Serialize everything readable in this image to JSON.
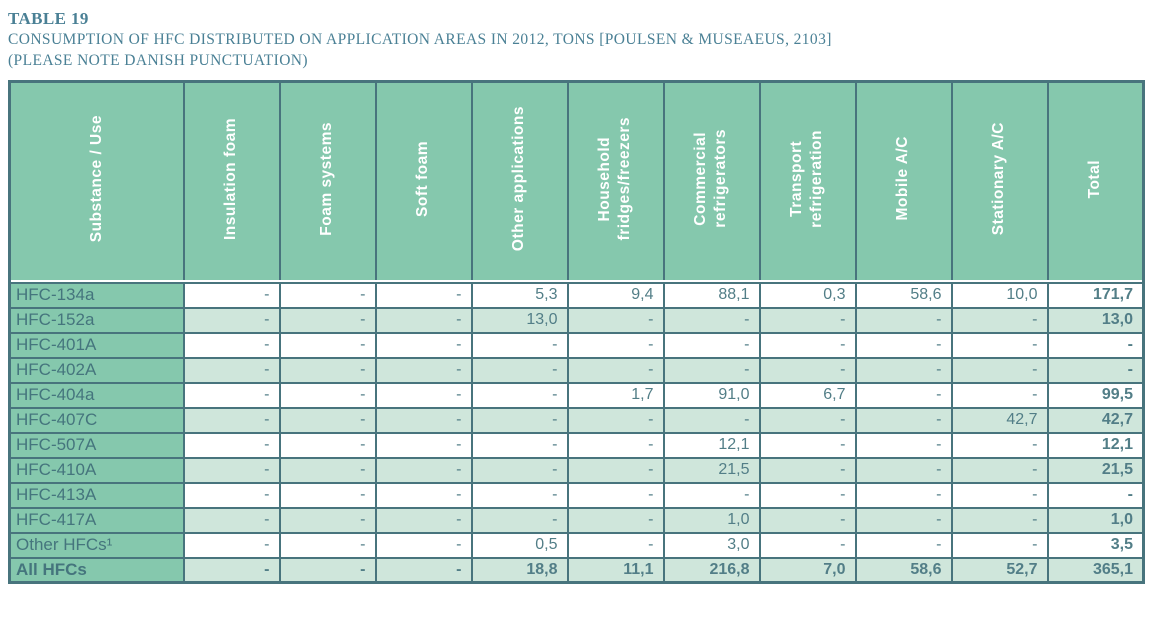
{
  "page": {
    "title": "TABLE 19",
    "subtitle": "CONSUMPTION OF HFC DISTRIBUTED ON APPLICATION AREAS IN 2012, TONS [POULSEN & MUSEAEUS, 2103]",
    "note": "(PLEASE NOTE DANISH PUNCTUATION)"
  },
  "colors": {
    "header_bg": "#85c8ad",
    "alt_row_bg": "#cfe6db",
    "border": "#48747d",
    "title_text": "#4a8095",
    "data_text": "#527e87",
    "label_text": "#45757d",
    "header_text": "#ffffff"
  },
  "table": {
    "corner_label": "Substance / Use",
    "columns": [
      "Insulation foam",
      "Foam systems",
      "Soft foam",
      "Other applications",
      "Household\nfridges/freezers",
      "Commercial\nrefrigerators",
      "Transport\nrefrigeration",
      "Mobile A/C",
      "Stationary A/C",
      "Total"
    ],
    "rows": [
      {
        "label": "HFC-134a",
        "bold": false,
        "values": [
          "-",
          "-",
          "-",
          "5,3",
          "9,4",
          "88,1",
          "0,3",
          "58,6",
          "10,0",
          "171,7"
        ]
      },
      {
        "label": "HFC-152a",
        "bold": false,
        "values": [
          "-",
          "-",
          "-",
          "13,0",
          "-",
          "-",
          "-",
          "-",
          "-",
          "13,0"
        ]
      },
      {
        "label": "HFC-401A",
        "bold": false,
        "values": [
          "-",
          "-",
          "-",
          "-",
          "-",
          "-",
          "-",
          "-",
          "-",
          "-"
        ]
      },
      {
        "label": "HFC-402A",
        "bold": false,
        "values": [
          "-",
          "-",
          "-",
          "-",
          "-",
          "-",
          "-",
          "-",
          "-",
          "-"
        ]
      },
      {
        "label": "HFC-404a",
        "bold": false,
        "values": [
          "-",
          "-",
          "-",
          "-",
          "1,7",
          "91,0",
          "6,7",
          "-",
          "-",
          "99,5"
        ]
      },
      {
        "label": "HFC-407C",
        "bold": false,
        "values": [
          "-",
          "-",
          "-",
          "-",
          "-",
          "-",
          "-",
          "-",
          "42,7",
          "42,7"
        ]
      },
      {
        "label": "HFC-507A",
        "bold": false,
        "values": [
          "-",
          "-",
          "-",
          "-",
          "-",
          "12,1",
          "-",
          "-",
          "-",
          "12,1"
        ]
      },
      {
        "label": "HFC-410A",
        "bold": false,
        "values": [
          "-",
          "-",
          "-",
          "-",
          "-",
          "21,5",
          "-",
          "-",
          "-",
          "21,5"
        ]
      },
      {
        "label": "HFC-413A",
        "bold": false,
        "values": [
          "-",
          "-",
          "-",
          "-",
          "-",
          "-",
          "-",
          "-",
          "-",
          "-"
        ]
      },
      {
        "label": "HFC-417A",
        "bold": false,
        "values": [
          "-",
          "-",
          "-",
          "-",
          "-",
          "1,0",
          "-",
          "-",
          "-",
          "1,0"
        ]
      },
      {
        "label": "Other HFCs¹",
        "bold": false,
        "values": [
          "-",
          "-",
          "-",
          "0,5",
          "-",
          "3,0",
          "-",
          "-",
          "-",
          "3,5"
        ]
      },
      {
        "label": "All HFCs",
        "bold": true,
        "values": [
          "-",
          "-",
          "-",
          "18,8",
          "11,1",
          "216,8",
          "7,0",
          "58,6",
          "52,7",
          "365,1"
        ]
      }
    ]
  }
}
